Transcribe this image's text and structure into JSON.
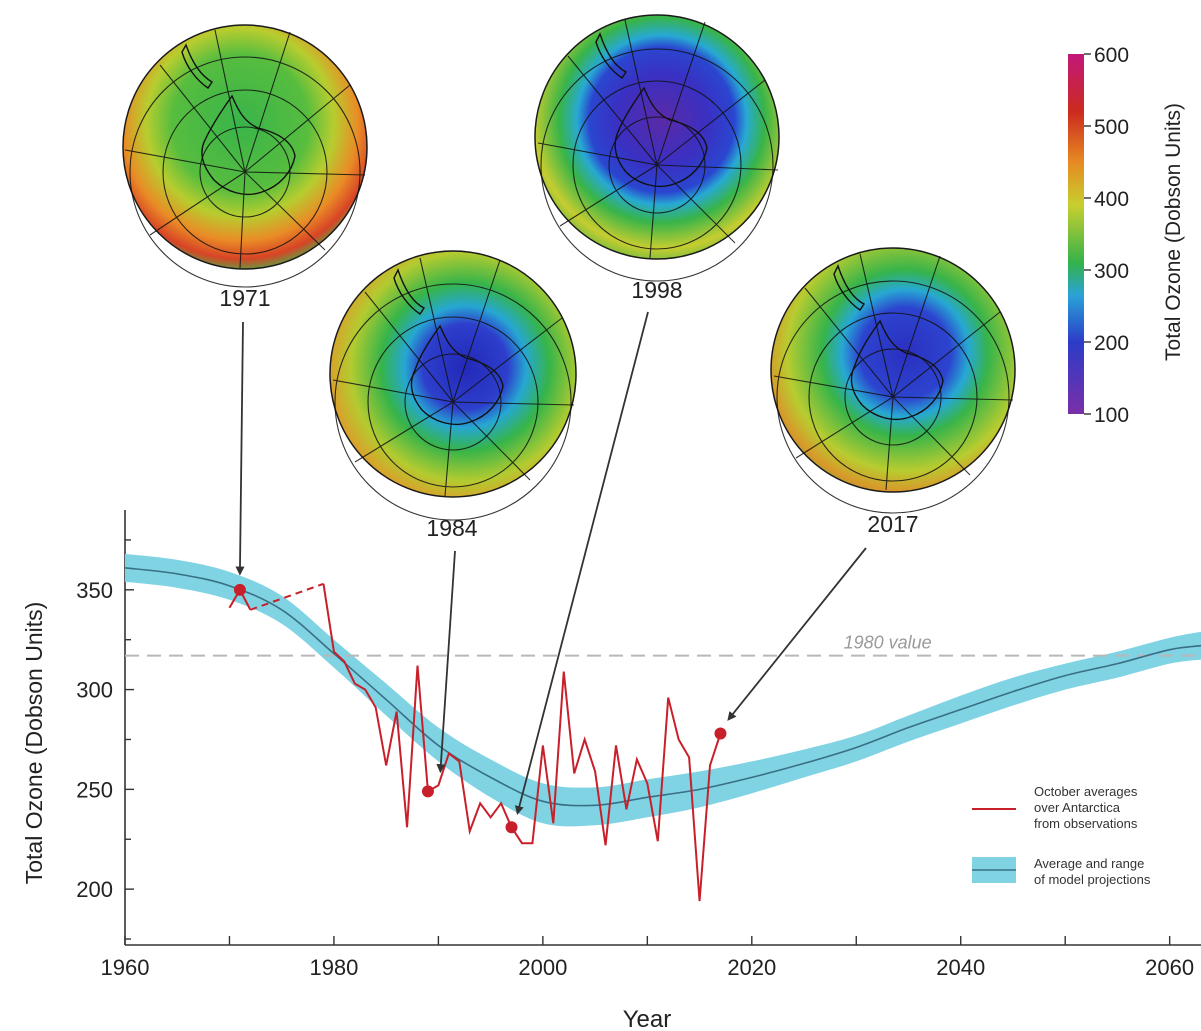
{
  "globes": [
    {
      "year": "1971"
    },
    {
      "year": "1984"
    },
    {
      "year": "1998"
    },
    {
      "year": "2017"
    }
  ],
  "colorbar": {
    "label": "Total Ozone (Dobson Units)",
    "ticks": [
      "600",
      "500",
      "400",
      "300",
      "200",
      "100"
    ],
    "min": 100,
    "max": 600,
    "colors": [
      "#7a2fa8",
      "#2b3cc8",
      "#2aa3d6",
      "#34b24a",
      "#c8cf2e",
      "#e68a22",
      "#cc2a1e",
      "#c2187a"
    ]
  },
  "chart_data": {
    "type": "line",
    "xlabel": "Year",
    "ylabel": "Total Ozone (Dobson Units)",
    "xlim": [
      1960,
      2063
    ],
    "ylim": [
      172,
      390
    ],
    "xticks": [
      "1960",
      "1980",
      "2000",
      "2020",
      "2040",
      "2060"
    ],
    "yticks": [
      "200",
      "250",
      "300",
      "350"
    ],
    "reference": {
      "value": 317,
      "label": "1980 value"
    },
    "legend": {
      "observations": "October averages over Antarctica from observations",
      "observations_lines": [
        "October averages",
        "over Antarctica",
        "from observations"
      ],
      "model": "Average and range of model projections",
      "model_lines": [
        "Average and range",
        "of model projections"
      ]
    },
    "model_projection": {
      "year": [
        1960,
        1965,
        1970,
        1975,
        1980,
        1985,
        1990,
        1995,
        2000,
        2005,
        2010,
        2015,
        2020,
        2025,
        2030,
        2035,
        2040,
        2045,
        2050,
        2055,
        2060,
        2063
      ],
      "mean": [
        361,
        358,
        352,
        340,
        318,
        295,
        272,
        256,
        244,
        242,
        246,
        250,
        256,
        263,
        271,
        281,
        290,
        299,
        307,
        313,
        320,
        322
      ],
      "lower": [
        354,
        351,
        345,
        333,
        311,
        287,
        264,
        246,
        233,
        232,
        236,
        241,
        248,
        256,
        264,
        274,
        283,
        292,
        300,
        306,
        313,
        315
      ],
      "upper": [
        368,
        365,
        359,
        347,
        325,
        303,
        281,
        265,
        253,
        251,
        255,
        259,
        264,
        270,
        277,
        287,
        297,
        306,
        313,
        319,
        326,
        329
      ]
    },
    "observations": {
      "year": [
        1970,
        1971,
        1972,
        1979,
        1980,
        1981,
        1982,
        1983,
        1984,
        1985,
        1986,
        1987,
        1988,
        1989,
        1990,
        1991,
        1992,
        1993,
        1994,
        1995,
        1996,
        1997,
        1998,
        1999,
        2000,
        2001,
        2002,
        2003,
        2004,
        2005,
        2006,
        2007,
        2008,
        2009,
        2010,
        2011,
        2012,
        2013,
        2014,
        2015,
        2016,
        2017
      ],
      "value": [
        341,
        350,
        340,
        353,
        319,
        314,
        303,
        300,
        291,
        262,
        289,
        231,
        312,
        249,
        252,
        268,
        264,
        229,
        243,
        236,
        243,
        231,
        223,
        223,
        272,
        233,
        309,
        258,
        275,
        259,
        222,
        272,
        240,
        265,
        253,
        224,
        296,
        275,
        266,
        194,
        262,
        278
      ],
      "gap_segment": [
        1972,
        1979
      ],
      "highlighted_years": [
        1971,
        1989,
        1997,
        2017
      ]
    },
    "colors": {
      "observations": "#c8202a",
      "model_band": "#7fd3e3",
      "model_line": "#3a6f86",
      "reference": "#b8b8b8",
      "arrow": "#333333",
      "axis": "#333333"
    }
  }
}
